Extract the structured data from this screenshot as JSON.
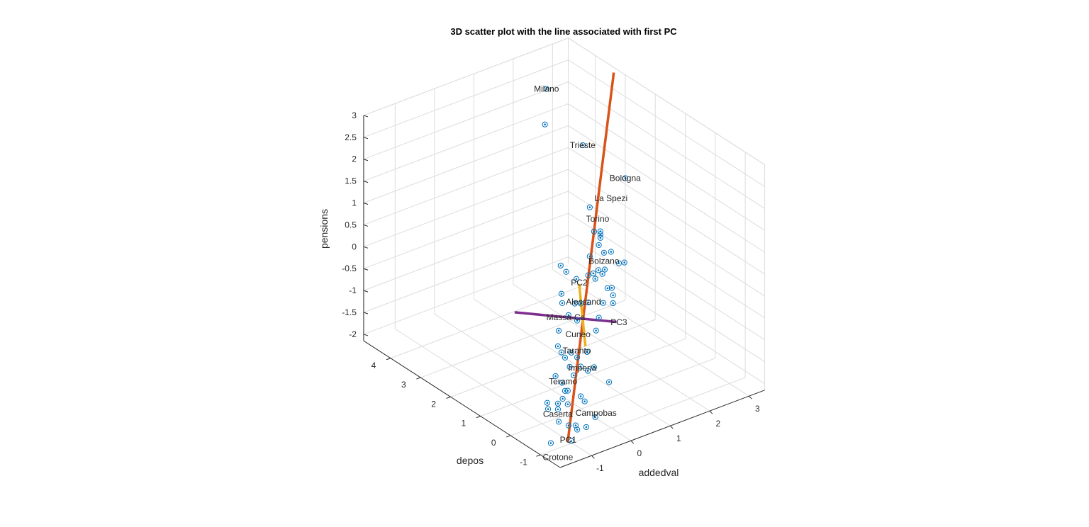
{
  "chart_data": {
    "type": "scatter3d",
    "title": "3D scatter plot with the line associated with first PC",
    "xlabel": "addedval",
    "ylabel": "depos",
    "zlabel": "pensions",
    "xlim": [
      -1.8,
      3.4
    ],
    "ylim": [
      -1.65,
      4.9
    ],
    "zlim": [
      -2.15,
      3.0
    ],
    "xticks": [
      -1,
      0,
      1,
      2,
      3
    ],
    "yticks": [
      -1,
      0,
      1,
      2,
      3,
      4
    ],
    "zticks": [
      -2,
      -1.5,
      -1,
      -0.5,
      0,
      0.5,
      1,
      1.5,
      2,
      2.5,
      3
    ],
    "grid": true,
    "marker_color": "#0072BD",
    "points": [
      [
        0.56,
        1.9,
        4.13
      ],
      [
        0.52,
        1.9,
        3.33
      ],
      [
        1.48,
        1.9,
        2.53
      ],
      [
        2.56,
        1.9,
        1.41
      ],
      [
        1.66,
        1.9,
        1.05
      ],
      [
        1.77,
        1.9,
        0.46
      ],
      [
        1.93,
        1.9,
        0.41
      ],
      [
        1.93,
        1.9,
        0.34
      ],
      [
        1.93,
        1.9,
        0.26
      ],
      [
        1.89,
        1.9,
        0.11
      ],
      [
        2.02,
        1.9,
        -0.11
      ],
      [
        2.2,
        1.9,
        -0.15
      ],
      [
        1.66,
        1.9,
        -0.07
      ],
      [
        2.4,
        1.9,
        -0.48
      ],
      [
        2.54,
        1.9,
        -0.51
      ],
      [
        0.92,
        1.9,
        -0.03
      ],
      [
        1.06,
        1.9,
        -0.22
      ],
      [
        2.04,
        1.9,
        -0.5
      ],
      [
        1.88,
        1.9,
        -0.46
      ],
      [
        1.98,
        1.9,
        -0.58
      ],
      [
        1.75,
        1.9,
        -0.49
      ],
      [
        1.62,
        1.9,
        -0.49
      ],
      [
        1.32,
        1.9,
        -0.47
      ],
      [
        1.8,
        1.9,
        -0.63
      ],
      [
        2.11,
        1.9,
        -0.95
      ],
      [
        2.22,
        1.9,
        -0.98
      ],
      [
        2.25,
        1.9,
        -1.16
      ],
      [
        0.94,
        1.9,
        -0.68
      ],
      [
        0.96,
        1.9,
        -0.9
      ],
      [
        1.28,
        1.9,
        -1.02
      ],
      [
        1.43,
        1.9,
        -1.07
      ],
      [
        1.62,
        1.9,
        -1.11
      ],
      [
        2.0,
        1.9,
        -1.25
      ],
      [
        2.25,
        1.9,
        -1.34
      ],
      [
        1.12,
        1.9,
        -1.23
      ],
      [
        1.34,
        1.9,
        -1.43
      ],
      [
        1.89,
        1.9,
        -1.55
      ],
      [
        0.87,
        1.9,
        -1.5
      ],
      [
        1.82,
        1.9,
        -1.82
      ],
      [
        0.85,
        1.9,
        -1.85
      ],
      [
        0.94,
        1.9,
        -2.02
      ],
      [
        1.03,
        1.9,
        -2.17
      ],
      [
        1.19,
        1.9,
        -2.11
      ],
      [
        1.34,
        1.9,
        -2.27
      ],
      [
        1.59,
        1.9,
        -2.23
      ],
      [
        1.15,
        1.9,
        -2.42
      ],
      [
        1.43,
        1.9,
        -2.51
      ],
      [
        1.61,
        1.9,
        -2.67
      ],
      [
        1.77,
        1.9,
        -2.64
      ],
      [
        0.79,
        1.9,
        -2.51
      ],
      [
        1.25,
        1.9,
        -2.65
      ],
      [
        2.15,
        1.9,
        -3.11
      ],
      [
        0.96,
        1.9,
        -2.72
      ],
      [
        1.03,
        1.9,
        -2.93
      ],
      [
        1.1,
        1.9,
        -2.95
      ],
      [
        1.43,
        1.9,
        -3.19
      ],
      [
        1.53,
        1.9,
        -3.34
      ],
      [
        0.97,
        1.9,
        -3.09
      ],
      [
        0.58,
        1.9,
        -3.05
      ],
      [
        0.85,
        1.9,
        -3.16
      ],
      [
        1.1,
        1.9,
        -3.26
      ],
      [
        0.6,
        1.9,
        -3.2
      ],
      [
        0.85,
        1.9,
        -3.29
      ],
      [
        0.87,
        1.9,
        -3.58
      ],
      [
        1.12,
        1.9,
        -3.75
      ],
      [
        1.3,
        1.9,
        -3.81
      ],
      [
        1.34,
        1.9,
        -3.92
      ],
      [
        1.57,
        1.9,
        -3.94
      ],
      [
        1.8,
        1.9,
        -3.79
      ],
      [
        0.67,
        1.9,
        -4.0
      ],
      [
        1.19,
        1.9,
        -4.13
      ]
    ],
    "labels": [
      {
        "text": "Milano",
        "pos": [
          0.56,
          1.9,
          4.13
        ]
      },
      {
        "text": "Trieste",
        "pos": [
          1.48,
          1.9,
          2.53
        ]
      },
      {
        "text": "Bologna",
        "pos": [
          2.56,
          1.9,
          1.41
        ]
      },
      {
        "text": "Torino",
        "pos": [
          1.86,
          1.9,
          0.72
        ]
      },
      {
        "text": "La Spezi",
        "pos": [
          2.2,
          1.9,
          0.62
        ]
      },
      {
        "text": "Bolzano",
        "pos": [
          2.02,
          1.9,
          -0.3
        ]
      },
      {
        "text": "PC2",
        "pos": [
          1.39,
          1.9,
          -0.58
        ]
      },
      {
        "text": "Alessand",
        "pos": [
          1.5,
          1.9,
          -0.6
        ]
      },
      {
        "text": "Massa-Ca",
        "pos": [
          1.05,
          1.9,
          -0.8
        ]
      },
      {
        "text": "Cuneo",
        "pos": [
          1.36,
          1.9,
          -1.3
        ]
      },
      {
        "text": "PC3",
        "pos": [
          2.4,
          1.9,
          -1.83
        ]
      },
      {
        "text": "Taranto",
        "pos": [
          1.33,
          1.9,
          -1.66
        ]
      },
      {
        "text": "Imperia",
        "pos": [
          1.47,
          1.9,
          -2.1
        ]
      },
      {
        "text": "Teramo",
        "pos": [
          0.98,
          1.9,
          -2.7
        ]
      },
      {
        "text": "Caserta",
        "pos": [
          0.85,
          1.9,
          -3.4
        ]
      },
      {
        "text": "Campobas",
        "pos": [
          1.82,
          1.9,
          -3.7
        ]
      },
      {
        "text": "PC1",
        "pos": [
          1.11,
          1.9,
          -4.08
        ]
      },
      {
        "text": "Crotone",
        "pos": [
          0.85,
          1.9,
          -4.16
        ]
      }
    ],
    "lines": [
      {
        "name": "PC1",
        "color": "#D95319",
        "from": [
          1.1,
          1.9,
          -4.12
        ],
        "to": [
          2.27,
          1.9,
          3.92
        ]
      },
      {
        "name": "PC2",
        "color": "#EDB120",
        "from": [
          1.39,
          1.9,
          -0.61
        ],
        "to": [
          1.55,
          1.9,
          -2.09
        ]
      },
      {
        "name": "PC3",
        "color": "#7E2F8E",
        "from": [
          -0.25,
          1.9,
          -0.7
        ],
        "to": [
          2.34,
          1.9,
          -1.8
        ]
      }
    ]
  }
}
